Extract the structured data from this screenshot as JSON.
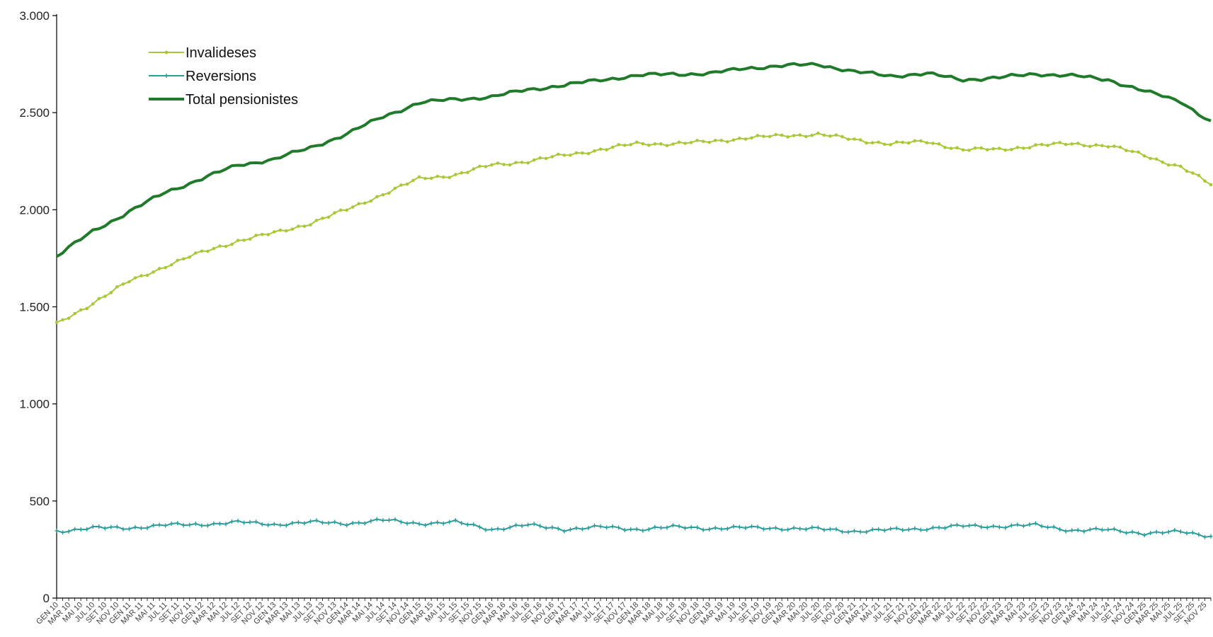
{
  "chart_data": {
    "type": "line",
    "title": "",
    "xlabel": "",
    "ylabel": "",
    "ylim": [
      0,
      3000
    ],
    "y_ticks": [
      0,
      500,
      1000,
      1500,
      2000,
      2500,
      3000
    ],
    "y_tick_labels": [
      "0",
      "500",
      "1.000",
      "1.500",
      "2.000",
      "2.500",
      "3.000"
    ],
    "x_start": "GEN 10",
    "x_end": "DES 25",
    "x_frequency": "monthly",
    "x_tick_label_months": [
      "GEN",
      "MAR",
      "MAI",
      "JUL",
      "SET",
      "NOV"
    ],
    "grid": false,
    "legend_position": "top-left",
    "legend": [
      {
        "key": "invalid",
        "label": "Invalideses"
      },
      {
        "key": "rev",
        "label": "Reversions"
      },
      {
        "key": "total",
        "label": "Total pensionistes"
      }
    ],
    "series": [
      {
        "key": "invalid",
        "name": "Invalideses",
        "color": "#a8c838",
        "marker": "circle",
        "anchors": [
          [
            "GEN 10",
            1410
          ],
          [
            "JUL 10",
            1520
          ],
          [
            "GEN 11",
            1630
          ],
          [
            "JUL 11",
            1710
          ],
          [
            "GEN 12",
            1780
          ],
          [
            "JUL 12",
            1840
          ],
          [
            "GEN 13",
            1880
          ],
          [
            "JUL 13",
            1930
          ],
          [
            "GEN 14",
            2000
          ],
          [
            "JUL 14",
            2080
          ],
          [
            "GEN 15",
            2160
          ],
          [
            "JUL 15",
            2180
          ],
          [
            "GEN 16",
            2230
          ],
          [
            "JUL 16",
            2250
          ],
          [
            "GEN 17",
            2280
          ],
          [
            "JUL 17",
            2310
          ],
          [
            "GEN 18",
            2340
          ],
          [
            "JUL 18",
            2340
          ],
          [
            "GEN 19",
            2350
          ],
          [
            "JUL 19",
            2370
          ],
          [
            "GEN 20",
            2380
          ],
          [
            "JUL 20",
            2390
          ],
          [
            "GEN 21",
            2360
          ],
          [
            "JUL 21",
            2340
          ],
          [
            "GEN 22",
            2350
          ],
          [
            "JUL 22",
            2310
          ],
          [
            "GEN 23",
            2310
          ],
          [
            "JUL 23",
            2330
          ],
          [
            "GEN 24",
            2340
          ],
          [
            "JUL 24",
            2330
          ],
          [
            "GEN 25",
            2280
          ],
          [
            "JUL 25",
            2220
          ],
          [
            "DES 25",
            2130
          ]
        ]
      },
      {
        "key": "rev",
        "name": "Reversions",
        "color": "#2a9d9b",
        "marker": "cross",
        "anchors": [
          [
            "GEN 10",
            345
          ],
          [
            "JUL 10",
            360
          ],
          [
            "GEN 11",
            362
          ],
          [
            "JUL 11",
            375
          ],
          [
            "GEN 12",
            380
          ],
          [
            "JUL 12",
            390
          ],
          [
            "GEN 13",
            380
          ],
          [
            "JUL 13",
            390
          ],
          [
            "GEN 14",
            385
          ],
          [
            "JUL 14",
            400
          ],
          [
            "GEN 15",
            385
          ],
          [
            "JUL 15",
            390
          ],
          [
            "GEN 16",
            355
          ],
          [
            "JUL 16",
            375
          ],
          [
            "GEN 17",
            355
          ],
          [
            "JUL 17",
            365
          ],
          [
            "GEN 18",
            355
          ],
          [
            "JUL 18",
            365
          ],
          [
            "GEN 19",
            360
          ],
          [
            "JUL 19",
            362
          ],
          [
            "GEN 20",
            360
          ],
          [
            "JUL 20",
            355
          ],
          [
            "GEN 21",
            345
          ],
          [
            "JUL 21",
            350
          ],
          [
            "GEN 22",
            360
          ],
          [
            "JUL 22",
            370
          ],
          [
            "GEN 23",
            370
          ],
          [
            "JUL 23",
            375
          ],
          [
            "GEN 24",
            350
          ],
          [
            "JUL 24",
            350
          ],
          [
            "GEN 25",
            335
          ],
          [
            "JUL 25",
            340
          ],
          [
            "DES 25",
            320
          ]
        ]
      },
      {
        "key": "total",
        "name": "Total pensionistes",
        "color": "#1f7a2a",
        "marker": "none",
        "anchors": [
          [
            "GEN 10",
            1760
          ],
          [
            "JUL 10",
            1890
          ],
          [
            "GEN 11",
            1990
          ],
          [
            "JUL 11",
            2090
          ],
          [
            "GEN 12",
            2160
          ],
          [
            "JUL 12",
            2230
          ],
          [
            "GEN 13",
            2260
          ],
          [
            "JUL 13",
            2320
          ],
          [
            "GEN 14",
            2390
          ],
          [
            "JUL 14",
            2480
          ],
          [
            "GEN 15",
            2550
          ],
          [
            "JUL 15",
            2570
          ],
          [
            "GEN 16",
            2580
          ],
          [
            "JUL 16",
            2620
          ],
          [
            "GEN 17",
            2640
          ],
          [
            "JUL 17",
            2670
          ],
          [
            "GEN 18",
            2690
          ],
          [
            "JUL 18",
            2700
          ],
          [
            "GEN 19",
            2700
          ],
          [
            "JUL 19",
            2730
          ],
          [
            "GEN 20",
            2740
          ],
          [
            "JUL 20",
            2750
          ],
          [
            "GEN 21",
            2710
          ],
          [
            "JUL 21",
            2690
          ],
          [
            "GEN 22",
            2700
          ],
          [
            "JUL 22",
            2670
          ],
          [
            "GEN 23",
            2680
          ],
          [
            "JUL 23",
            2700
          ],
          [
            "GEN 24",
            2690
          ],
          [
            "JUL 24",
            2670
          ],
          [
            "GEN 25",
            2610
          ],
          [
            "JUL 25",
            2560
          ],
          [
            "DES 25",
            2450
          ]
        ]
      }
    ]
  }
}
